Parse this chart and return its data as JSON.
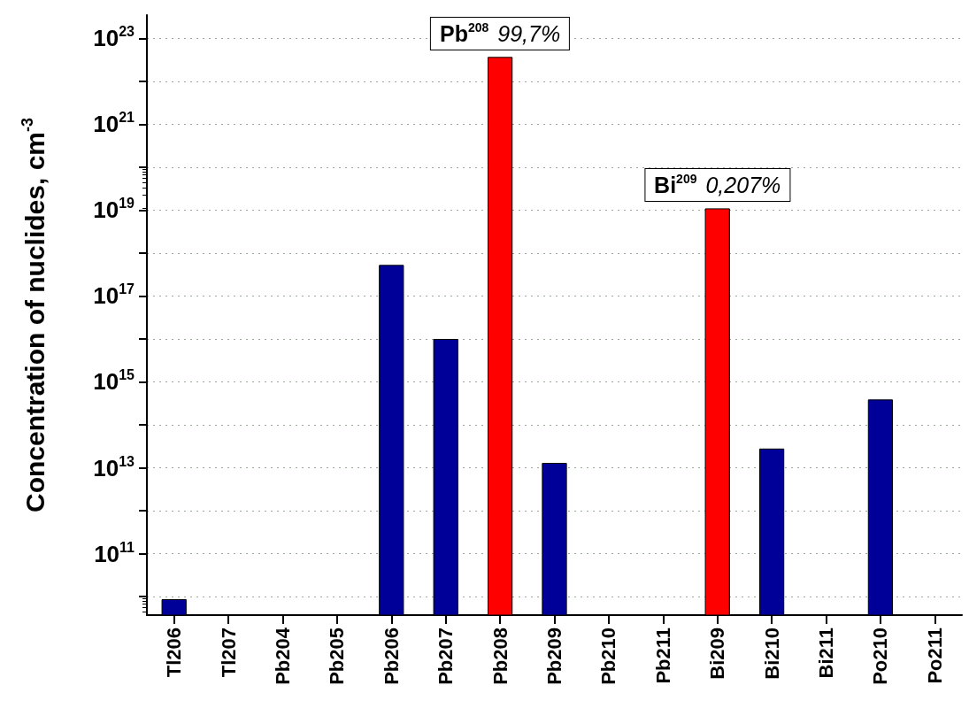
{
  "chart_data": {
    "type": "bar",
    "ylabel": "Concentration of nuclides, cm$^{-3}$",
    "categories": [
      "Tl206",
      "Tl207",
      "Pb204",
      "Pb205",
      "Pb206",
      "Pb207",
      "Pb208",
      "Pb209",
      "Pb210",
      "Pb211",
      "Bi209",
      "Bi210",
      "Bi211",
      "Po210",
      "Po211"
    ],
    "values": [
      8700000000.0,
      null,
      null,
      null,
      5.3e+17,
      1e+16,
      3.7e+22,
      13000000000000.0,
      null,
      null,
      1.1e+19,
      28000000000000.0,
      null,
      390000000000000.0,
      null
    ],
    "colors": [
      "#000099",
      "#000099",
      "#000099",
      "#000099",
      "#000099",
      "#000099",
      "#ff0000",
      "#000099",
      "#000099",
      "#000099",
      "#ff0000",
      "#000099",
      "#000099",
      "#000099",
      "#000099"
    ],
    "log": "y",
    "ylim": [
      3700000000.0,
      3.5e+23
    ],
    "yticks": [
      {
        "value": 10000000000.0,
        "label": null
      },
      {
        "value": 100000000000.0,
        "label": "10$^{11}$"
      },
      {
        "value": 1000000000000.0,
        "label": null
      },
      {
        "value": 10000000000000.0,
        "label": "10$^{13}$"
      },
      {
        "value": 100000000000000.0,
        "label": null
      },
      {
        "value": 1000000000000000.0,
        "label": "10$^{15}$"
      },
      {
        "value": 1e+16,
        "label": null
      },
      {
        "value": 1e+17,
        "label": "10$^{17}$"
      },
      {
        "value": 1e+18,
        "label": null
      },
      {
        "value": 1e+19,
        "label": "10$^{19}$"
      },
      {
        "value": 1e+20,
        "label": null
      },
      {
        "value": 1e+21,
        "label": "10$^{21}$"
      },
      {
        "value": 1e+22,
        "label": null
      },
      {
        "value": 1e+23,
        "label": "10$^{23}$"
      }
    ],
    "grid": "y",
    "annotations": [
      {
        "text": "Pb$^{208}$ 99,7%",
        "x": "Pb208",
        "y": 3.7e+22
      },
      {
        "text": "Bi$^{209}$ 0,207%",
        "x": "Bi209",
        "y": 1.1e+19
      }
    ]
  }
}
